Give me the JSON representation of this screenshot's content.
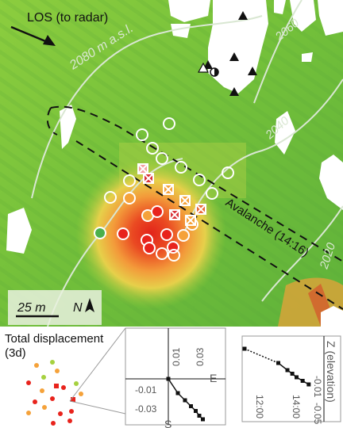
{
  "map": {
    "los_label": "LOS (to radar)",
    "contour_2080": "2080 m a.s.l.",
    "contour_2060": "2060",
    "contour_2040": "2040",
    "contour_2020": "2020",
    "avalanche_label": "Avalanche (14:16)",
    "scale_label": "25 m",
    "north_label": "N"
  },
  "colors": {
    "field_green": "#7ec63a",
    "hot_red": "#e8231c",
    "orange": "#f5a23a",
    "yellow_green": "#c8d63a",
    "contour": "#d8e6d0"
  },
  "panel": {
    "title_line1": "Total displacement",
    "title_line2": "(3d)",
    "chart_axes": {
      "x_ticks": [
        "0.01",
        "0.03"
      ],
      "y_ticks": [
        "-0.01",
        "-0.03"
      ],
      "x_axis_label": "E",
      "y_axis_label": "S"
    },
    "chart_time": {
      "y_ticks": [
        "-0.01",
        "-0.05"
      ],
      "x_ticks": [
        "12:00",
        "14:00"
      ],
      "axis_label": "Z (elevation)"
    }
  },
  "chart_data": [
    {
      "type": "line",
      "x_label": "E",
      "y_label": "S",
      "x_ticks": [
        0.01,
        0.03
      ],
      "y_ticks": [
        -0.01,
        -0.03
      ],
      "x": [
        0.0,
        0.008,
        0.014,
        0.019,
        0.023,
        0.026,
        0.029
      ],
      "y": [
        0.0,
        -0.012,
        -0.018,
        -0.023,
        -0.027,
        -0.031,
        -0.034
      ]
    },
    {
      "type": "line",
      "y_label": "Z (elevation)",
      "x_ticks": [
        "12:00",
        "14:00"
      ],
      "y_ticks": [
        -0.01,
        -0.05
      ],
      "x": [
        "10:45",
        "13:30",
        "14:00",
        "14:16",
        "14:30",
        "14:50",
        "15:10"
      ],
      "y": [
        0.0,
        -0.02,
        -0.03,
        -0.035,
        -0.04,
        -0.045,
        -0.05
      ]
    }
  ]
}
